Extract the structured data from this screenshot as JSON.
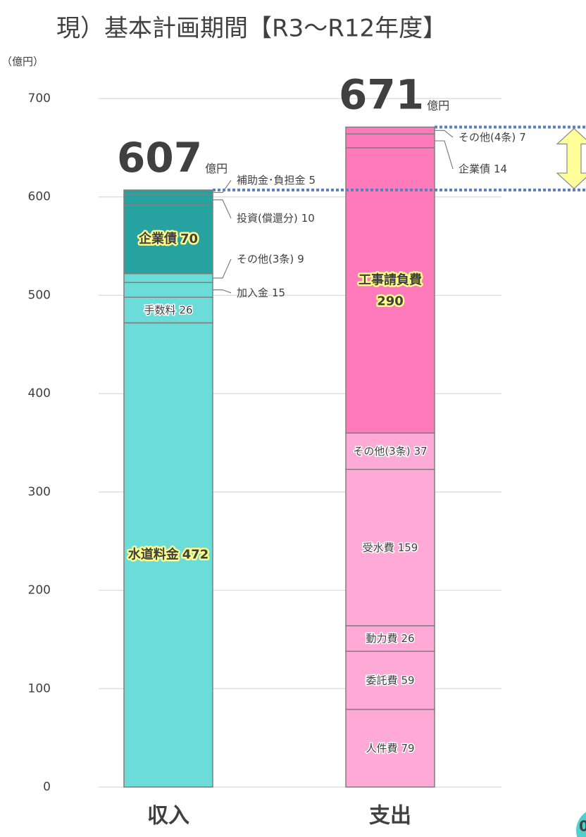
{
  "chart_data": {
    "type": "stacked_bar",
    "title": "現）基本計画期間【R3～R12年度】",
    "y_unit_label": "（億円）",
    "categories": [
      "収入",
      "支出"
    ],
    "totals": [
      607,
      671
    ],
    "total_unit": "億円",
    "ylim": [
      0,
      700
    ],
    "yticks": [
      0,
      100,
      200,
      300,
      400,
      500,
      600,
      700
    ],
    "grid": true,
    "stacks": [
      {
        "segments": [
          {
            "name": "水道料金",
            "value": 472,
            "color": "#6cdcd9",
            "highlight": true
          },
          {
            "name": "手数料",
            "value": 26,
            "color": "#6cdcd9"
          },
          {
            "name": "加入金",
            "value": 15,
            "color": "#6cdcd9"
          },
          {
            "name": "その他(3条)",
            "value": 9,
            "color": "#6cdcd9"
          },
          {
            "name": "企業債",
            "value": 70,
            "color": "#26a3a0",
            "highlight": true
          },
          {
            "name": "投資(償還分)",
            "value": 10,
            "color": "#26a3a0"
          },
          {
            "name": "補助金･負担金",
            "value": 5,
            "color": "#26a3a0"
          }
        ]
      },
      {
        "segments": [
          {
            "name": "人件費",
            "value": 79,
            "color": "#ffaad6"
          },
          {
            "name": "委託費",
            "value": 59,
            "color": "#ffaad6"
          },
          {
            "name": "動力費",
            "value": 26,
            "color": "#ffaad6"
          },
          {
            "name": "受水費",
            "value": 159,
            "color": "#ffaad6"
          },
          {
            "name": "その他(3条)",
            "value": 37,
            "color": "#ffaad6"
          },
          {
            "name": "工事請負費",
            "value": 290,
            "color": "#ff7aba",
            "highlight": true
          },
          {
            "name": "企業債",
            "value": 14,
            "color": "#ff7aba"
          },
          {
            "name": "その他(4条)",
            "value": 7,
            "color": "#ff7aba"
          }
        ]
      }
    ],
    "page_label": "0"
  }
}
